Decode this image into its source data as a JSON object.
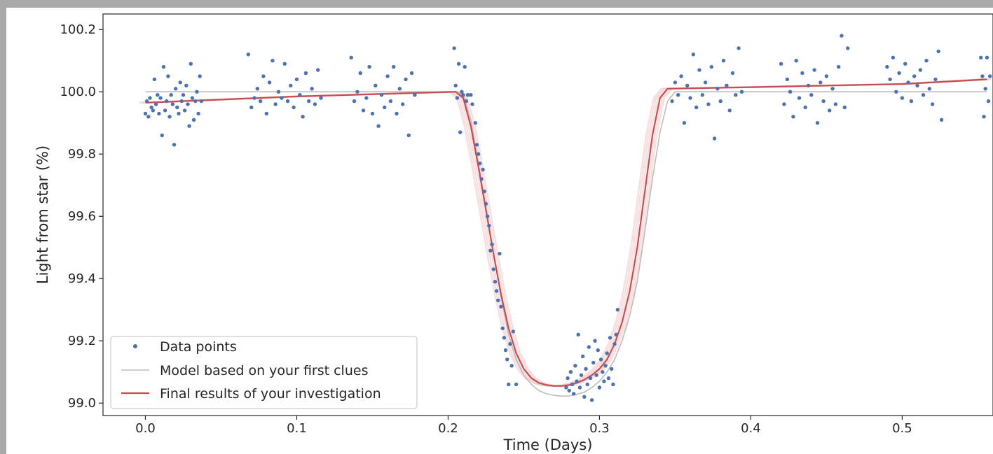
{
  "chart_data": {
    "type": "scatter",
    "title": "",
    "xlabel": "Time (Days)",
    "ylabel": "Light from star (%)",
    "xlim": [
      -0.028,
      0.56
    ],
    "ylim": [
      98.96,
      100.25
    ],
    "xticks": [
      0.0,
      0.1,
      0.2,
      0.3,
      0.4,
      0.5
    ],
    "xtick_labels": [
      "0.0",
      "0.1",
      "0.2",
      "0.3",
      "0.4",
      "0.5"
    ],
    "yticks": [
      99.0,
      99.2,
      99.4,
      99.6,
      99.8,
      100.0,
      100.2
    ],
    "ytick_labels": [
      "99.0",
      "99.2",
      "99.4",
      "99.6",
      "99.8",
      "100.0",
      "100.2"
    ],
    "grid": false,
    "legend_position": "lower-left",
    "series": [
      {
        "name": "Data points",
        "kind": "scatter",
        "color": "#4c72b0",
        "points": [
          [
            0.0,
            99.93
          ],
          [
            0.001,
            99.97
          ],
          [
            0.002,
            99.92
          ],
          [
            0.003,
            99.98
          ],
          [
            0.004,
            99.95
          ],
          [
            0.005,
            99.94
          ],
          [
            0.006,
            100.04
          ],
          [
            0.007,
            99.96
          ],
          [
            0.008,
            99.99
          ],
          [
            0.009,
            99.93
          ],
          [
            0.01,
            99.98
          ],
          [
            0.011,
            99.86
          ],
          [
            0.012,
            100.08
          ],
          [
            0.013,
            99.94
          ],
          [
            0.014,
            99.97
          ],
          [
            0.015,
            100.05
          ],
          [
            0.016,
            99.92
          ],
          [
            0.017,
            99.99
          ],
          [
            0.018,
            99.96
          ],
          [
            0.019,
            99.83
          ],
          [
            0.02,
            100.01
          ],
          [
            0.021,
            99.95
          ],
          [
            0.022,
            99.93
          ],
          [
            0.023,
            100.03
          ],
          [
            0.024,
            99.97
          ],
          [
            0.025,
            99.99
          ],
          [
            0.026,
            99.94
          ],
          [
            0.027,
            100.02
          ],
          [
            0.028,
            99.96
          ],
          [
            0.029,
            99.89
          ],
          [
            0.03,
            100.09
          ],
          [
            0.031,
            99.98
          ],
          [
            0.032,
            99.91
          ],
          [
            0.033,
            99.97
          ],
          [
            0.034,
            100.0
          ],
          [
            0.035,
            99.93
          ],
          [
            0.036,
            100.05
          ],
          [
            0.037,
            99.97
          ],
          [
            0.068,
            100.12
          ],
          [
            0.07,
            99.95
          ],
          [
            0.072,
            99.98
          ],
          [
            0.074,
            100.01
          ],
          [
            0.076,
            99.97
          ],
          [
            0.078,
            100.05
          ],
          [
            0.08,
            99.93
          ],
          [
            0.082,
            100.03
          ],
          [
            0.084,
            100.1
          ],
          [
            0.086,
            99.96
          ],
          [
            0.088,
            100.0
          ],
          [
            0.09,
            99.98
          ],
          [
            0.092,
            100.09
          ],
          [
            0.094,
            99.97
          ],
          [
            0.096,
            100.02
          ],
          [
            0.098,
            99.95
          ],
          [
            0.1,
            100.04
          ],
          [
            0.102,
            99.99
          ],
          [
            0.104,
            99.92
          ],
          [
            0.106,
            100.06
          ],
          [
            0.108,
            99.97
          ],
          [
            0.11,
            100.01
          ],
          [
            0.112,
            99.96
          ],
          [
            0.114,
            100.07
          ],
          [
            0.116,
            99.98
          ],
          [
            0.136,
            100.11
          ],
          [
            0.138,
            99.97
          ],
          [
            0.14,
            100.0
          ],
          [
            0.142,
            100.06
          ],
          [
            0.144,
            99.94
          ],
          [
            0.146,
            99.98
          ],
          [
            0.148,
            100.08
          ],
          [
            0.15,
            99.93
          ],
          [
            0.152,
            100.02
          ],
          [
            0.154,
            99.89
          ],
          [
            0.156,
            99.99
          ],
          [
            0.158,
            99.95
          ],
          [
            0.16,
            100.05
          ],
          [
            0.162,
            99.97
          ],
          [
            0.164,
            100.08
          ],
          [
            0.166,
            99.93
          ],
          [
            0.168,
            100.01
          ],
          [
            0.17,
            99.96
          ],
          [
            0.172,
            100.04
          ],
          [
            0.174,
            99.86
          ],
          [
            0.176,
            100.06
          ],
          [
            0.178,
            99.99
          ],
          [
            0.204,
            100.14
          ],
          [
            0.205,
            100.02
          ],
          [
            0.206,
            99.98
          ],
          [
            0.207,
            100.09
          ],
          [
            0.208,
            99.87
          ],
          [
            0.209,
            100.0
          ],
          [
            0.21,
            99.99
          ],
          [
            0.211,
            100.08
          ],
          [
            0.212,
            99.97
          ],
          [
            0.213,
            99.99
          ],
          [
            0.215,
            99.99
          ],
          [
            0.216,
            99.96
          ],
          [
            0.218,
            99.9
          ],
          [
            0.219,
            99.83
          ],
          [
            0.22,
            99.8
          ],
          [
            0.221,
            99.77
          ],
          [
            0.222,
            99.72
          ],
          [
            0.223,
            99.75
          ],
          [
            0.224,
            99.68
          ],
          [
            0.225,
            99.64
          ],
          [
            0.226,
            99.6
          ],
          [
            0.227,
            99.57
          ],
          [
            0.228,
            99.49
          ],
          [
            0.229,
            99.51
          ],
          [
            0.23,
            99.43
          ],
          [
            0.231,
            99.39
          ],
          [
            0.232,
            99.36
          ],
          [
            0.233,
            99.33
          ],
          [
            0.234,
            99.48
          ],
          [
            0.235,
            99.31
          ],
          [
            0.236,
            99.24
          ],
          [
            0.237,
            99.21
          ],
          [
            0.238,
            99.17
          ],
          [
            0.239,
            99.14
          ],
          [
            0.24,
            99.06
          ],
          [
            0.241,
            99.19
          ],
          [
            0.242,
            99.12
          ],
          [
            0.243,
            99.23
          ],
          [
            0.245,
            99.06
          ],
          [
            0.278,
            99.05
          ],
          [
            0.279,
            99.08
          ],
          [
            0.28,
            99.04
          ],
          [
            0.281,
            99.1
          ],
          [
            0.282,
            99.06
          ],
          [
            0.283,
            99.03
          ],
          [
            0.284,
            99.12
          ],
          [
            0.285,
            99.07
          ],
          [
            0.286,
            99.22
          ],
          [
            0.287,
            99.05
          ],
          [
            0.288,
            99.09
          ],
          [
            0.289,
            99.15
          ],
          [
            0.29,
            99.02
          ],
          [
            0.291,
            99.11
          ],
          [
            0.292,
            99.06
          ],
          [
            0.293,
            99.18
          ],
          [
            0.294,
            99.08
          ],
          [
            0.295,
            99.01
          ],
          [
            0.296,
            99.13
          ],
          [
            0.297,
            99.2
          ],
          [
            0.298,
            99.09
          ],
          [
            0.299,
            99.17
          ],
          [
            0.3,
            99.05
          ],
          [
            0.301,
            99.14
          ],
          [
            0.302,
            99.1
          ],
          [
            0.303,
            99.07
          ],
          [
            0.304,
            99.12
          ],
          [
            0.305,
            99.16
          ],
          [
            0.306,
            99.08
          ],
          [
            0.307,
            99.21
          ],
          [
            0.308,
            99.11
          ],
          [
            0.309,
            99.06
          ],
          [
            0.31,
            99.19
          ],
          [
            0.311,
            99.22
          ],
          [
            0.312,
            99.3
          ],
          [
            0.348,
            99.97
          ],
          [
            0.35,
            100.03
          ],
          [
            0.352,
            99.99
          ],
          [
            0.354,
            100.05
          ],
          [
            0.356,
            99.9
          ],
          [
            0.358,
            100.02
          ],
          [
            0.36,
            99.98
          ],
          [
            0.362,
            100.12
          ],
          [
            0.364,
            99.95
          ],
          [
            0.366,
            100.07
          ],
          [
            0.368,
            99.99
          ],
          [
            0.37,
            100.03
          ],
          [
            0.372,
            99.96
          ],
          [
            0.374,
            100.08
          ],
          [
            0.376,
            99.85
          ],
          [
            0.378,
            100.01
          ],
          [
            0.38,
            99.97
          ],
          [
            0.382,
            100.1
          ],
          [
            0.384,
            100.02
          ],
          [
            0.386,
            99.94
          ],
          [
            0.388,
            100.06
          ],
          [
            0.39,
            99.99
          ],
          [
            0.392,
            100.14
          ],
          [
            0.394,
            100.0
          ],
          [
            0.42,
            100.09
          ],
          [
            0.422,
            99.96
          ],
          [
            0.424,
            100.04
          ],
          [
            0.426,
            100.0
          ],
          [
            0.428,
            99.92
          ],
          [
            0.43,
            100.1
          ],
          [
            0.432,
            99.98
          ],
          [
            0.434,
            100.06
          ],
          [
            0.436,
            99.95
          ],
          [
            0.438,
            100.02
          ],
          [
            0.44,
            99.99
          ],
          [
            0.442,
            100.07
          ],
          [
            0.444,
            99.9
          ],
          [
            0.446,
            100.03
          ],
          [
            0.448,
            99.97
          ],
          [
            0.45,
            100.05
          ],
          [
            0.452,
            99.94
          ],
          [
            0.454,
            100.01
          ],
          [
            0.456,
            99.96
          ],
          [
            0.458,
            100.08
          ],
          [
            0.46,
            100.18
          ],
          [
            0.462,
            99.95
          ],
          [
            0.464,
            100.14
          ],
          [
            0.49,
            100.08
          ],
          [
            0.492,
            100.04
          ],
          [
            0.494,
            100.11
          ],
          [
            0.496,
            100.0
          ],
          [
            0.498,
            100.06
          ],
          [
            0.5,
            99.98
          ],
          [
            0.502,
            100.09
          ],
          [
            0.504,
            100.03
          ],
          [
            0.506,
            99.97
          ],
          [
            0.508,
            100.05
          ],
          [
            0.51,
            100.02
          ],
          [
            0.512,
            100.07
          ],
          [
            0.514,
            99.99
          ],
          [
            0.516,
            100.1
          ],
          [
            0.518,
            100.01
          ],
          [
            0.52,
            99.96
          ],
          [
            0.522,
            100.04
          ],
          [
            0.524,
            100.13
          ],
          [
            0.526,
            99.91
          ],
          [
            0.552,
            100.11
          ],
          [
            0.553,
            100.05
          ],
          [
            0.554,
            99.92
          ],
          [
            0.555,
            100.01
          ],
          [
            0.556,
            100.11
          ],
          [
            0.557,
            99.97
          ],
          [
            0.558,
            100.05
          ]
        ]
      },
      {
        "name": "Model based on your first clues",
        "kind": "line",
        "color": "#bdbdbd",
        "points": [
          [
            0.0,
            100.0
          ],
          [
            0.205,
            100.0
          ],
          [
            0.21,
            99.99
          ],
          [
            0.215,
            99.91
          ],
          [
            0.22,
            99.77
          ],
          [
            0.225,
            99.63
          ],
          [
            0.23,
            99.48
          ],
          [
            0.235,
            99.34
          ],
          [
            0.24,
            99.22
          ],
          [
            0.245,
            99.14
          ],
          [
            0.25,
            99.09
          ],
          [
            0.255,
            99.06
          ],
          [
            0.26,
            99.04
          ],
          [
            0.265,
            99.03
          ],
          [
            0.27,
            99.025
          ],
          [
            0.275,
            99.022
          ],
          [
            0.28,
            99.023
          ],
          [
            0.285,
            99.028
          ],
          [
            0.29,
            99.035
          ],
          [
            0.295,
            99.05
          ],
          [
            0.3,
            99.07
          ],
          [
            0.305,
            99.1
          ],
          [
            0.31,
            99.14
          ],
          [
            0.315,
            99.2
          ],
          [
            0.32,
            99.28
          ],
          [
            0.325,
            99.39
          ],
          [
            0.33,
            99.55
          ],
          [
            0.335,
            99.72
          ],
          [
            0.34,
            99.87
          ],
          [
            0.345,
            99.97
          ],
          [
            0.35,
            100.0
          ],
          [
            0.556,
            100.0
          ]
        ]
      },
      {
        "name": "Final results of your investigation",
        "kind": "line",
        "color": "#c44e52",
        "points": [
          [
            0.0,
            99.965
          ],
          [
            0.1,
            99.985
          ],
          [
            0.205,
            100.0
          ],
          [
            0.21,
            99.98
          ],
          [
            0.215,
            99.89
          ],
          [
            0.22,
            99.76
          ],
          [
            0.225,
            99.62
          ],
          [
            0.23,
            99.48
          ],
          [
            0.235,
            99.35
          ],
          [
            0.24,
            99.24
          ],
          [
            0.245,
            99.16
          ],
          [
            0.25,
            99.11
          ],
          [
            0.255,
            99.08
          ],
          [
            0.26,
            99.065
          ],
          [
            0.265,
            99.058
          ],
          [
            0.27,
            99.055
          ],
          [
            0.275,
            99.055
          ],
          [
            0.28,
            99.058
          ],
          [
            0.285,
            99.065
          ],
          [
            0.29,
            99.075
          ],
          [
            0.295,
            99.09
          ],
          [
            0.3,
            99.11
          ],
          [
            0.305,
            99.14
          ],
          [
            0.31,
            99.19
          ],
          [
            0.315,
            99.26
          ],
          [
            0.32,
            99.36
          ],
          [
            0.325,
            99.5
          ],
          [
            0.33,
            99.68
          ],
          [
            0.335,
            99.86
          ],
          [
            0.34,
            99.98
          ],
          [
            0.345,
            100.01
          ],
          [
            0.4,
            100.015
          ],
          [
            0.5,
            100.025
          ],
          [
            0.556,
            100.04
          ]
        ]
      }
    ],
    "uncertainty_band_color": "#f2c4c4"
  }
}
